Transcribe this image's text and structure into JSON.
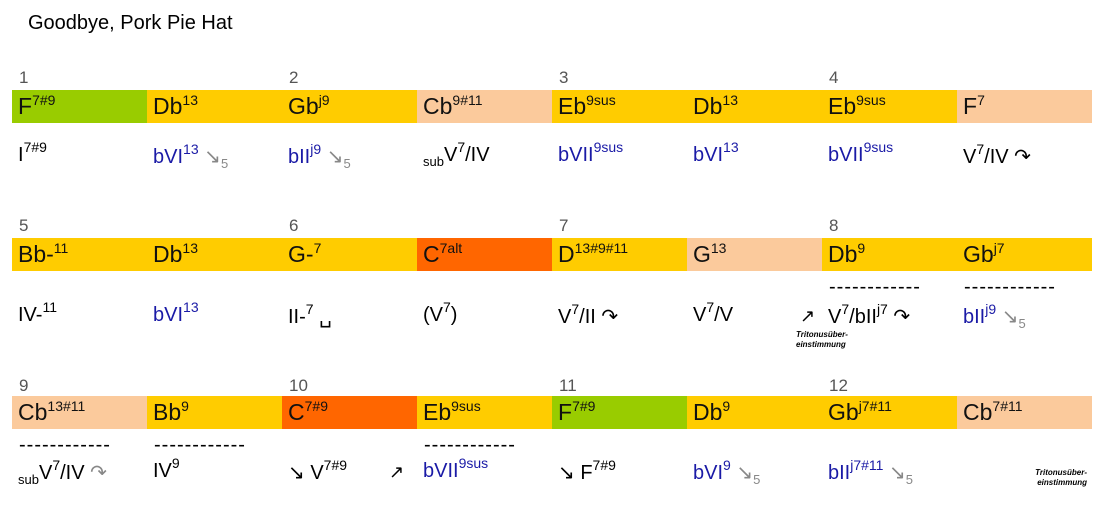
{
  "title": "Goodbye, Pork Pie Hat",
  "rows": [
    {
      "cells": [
        {
          "bar": "1",
          "color": "#99cc00",
          "chord": {
            "root": "F",
            "sup": "7#9"
          },
          "analysis": {
            "color": "#000000",
            "parts": [
              {
                "text": "I"
              },
              {
                "sup": "7#9"
              }
            ]
          }
        },
        {
          "color": "#ffcc00",
          "chord": {
            "root": "Db",
            "sup": "13"
          },
          "analysis": {
            "color": "#1a1aa6",
            "parts": [
              {
                "text": "bVI"
              },
              {
                "sup": "13"
              },
              {
                "mark": " ↘"
              },
              {
                "marksub": "5"
              }
            ]
          }
        },
        {
          "bar": "2",
          "color": "#ffcc00",
          "chord": {
            "root": "Gb",
            "sup": "j9"
          },
          "analysis": {
            "color": "#1a1aa6",
            "parts": [
              {
                "text": "bII"
              },
              {
                "sup": "j9"
              },
              {
                "mark": " ↘"
              },
              {
                "marksub": "5"
              }
            ]
          }
        },
        {
          "color": "#fbca9c",
          "chord": {
            "root": "Cb",
            "sup": "9#11"
          },
          "analysis": {
            "color": "#000000",
            "parts": [
              {
                "sub": "sub"
              },
              {
                "text": "V"
              },
              {
                "sup": "7"
              },
              {
                "text": "/IV"
              }
            ]
          }
        },
        {
          "bar": "3",
          "color": "#ffcc00",
          "chord": {
            "root": "Eb",
            "sup": "9sus"
          },
          "analysis": {
            "color": "#1a1aa6",
            "parts": [
              {
                "text": "bVII"
              },
              {
                "sup": "9sus"
              }
            ]
          }
        },
        {
          "color": "#ffcc00",
          "chord": {
            "root": "Db",
            "sup": "13"
          },
          "analysis": {
            "color": "#1a1aa6",
            "parts": [
              {
                "text": "bVI"
              },
              {
                "sup": "13"
              }
            ]
          }
        },
        {
          "bar": "4",
          "color": "#ffcc00",
          "chord": {
            "root": "Eb",
            "sup": "9sus"
          },
          "analysis": {
            "color": "#1a1aa6",
            "parts": [
              {
                "text": "bVII"
              },
              {
                "sup": "9sus"
              }
            ]
          }
        },
        {
          "color": "#fbca9c",
          "chord": {
            "root": "F",
            "sup": "7"
          },
          "analysis": {
            "color": "#000000",
            "parts": [
              {
                "text": "V"
              },
              {
                "sup": "7"
              },
              {
                "text": "/IV ↷"
              }
            ]
          }
        }
      ]
    },
    {
      "cells": [
        {
          "bar": "5",
          "color": "#ffcc00",
          "chord": {
            "root": "Bb-",
            "sup": "11"
          },
          "analysis": {
            "color": "#000000",
            "parts": [
              {
                "text": "IV-"
              },
              {
                "sup": "11"
              }
            ]
          }
        },
        {
          "color": "#ffcc00",
          "chord": {
            "root": "Db",
            "sup": "13"
          },
          "analysis": {
            "color": "#1a1aa6",
            "parts": [
              {
                "text": "bVI"
              },
              {
                "sup": "13"
              }
            ]
          }
        },
        {
          "bar": "6",
          "color": "#ffcc00",
          "chord": {
            "root": "G-",
            "sup": "7"
          },
          "analysis": {
            "color": "#000000",
            "parts": [
              {
                "text": "II-"
              },
              {
                "sup": "7"
              },
              {
                "text": " ␣"
              }
            ]
          }
        },
        {
          "color": "#ff6600",
          "chord": {
            "root": "C",
            "sup": "7alt"
          },
          "analysis": {
            "color": "#000000",
            "parts": [
              {
                "text": "(V"
              },
              {
                "sup": "7"
              },
              {
                "text": ")"
              }
            ]
          }
        },
        {
          "bar": "7",
          "color": "#ffcc00",
          "chord": {
            "root": "D",
            "sup": "13#9#11"
          },
          "analysis": {
            "color": "#000000",
            "parts": [
              {
                "text": "V"
              },
              {
                "sup": "7"
              },
              {
                "text": "/II ↷"
              }
            ]
          }
        },
        {
          "color": "#fbca9c",
          "chord": {
            "root": "G",
            "sup": "13"
          },
          "analysis": {
            "color": "#000000",
            "parts": [
              {
                "text": "V"
              },
              {
                "sup": "7"
              },
              {
                "text": "/V"
              }
            ]
          },
          "note": {
            "arrow": "↗",
            "lines": [
              "Tritonusüber-",
              "einstimmung"
            ]
          }
        },
        {
          "bar": "8",
          "color": "#ffcc00",
          "chord": {
            "root": "Db",
            "sup": "9"
          },
          "line": "------------",
          "analysis": {
            "color": "#000000",
            "parts": [
              {
                "text": "V"
              },
              {
                "sup": "7"
              },
              {
                "text": "/bII"
              },
              {
                "sup": "j7"
              },
              {
                "text": " ↷"
              }
            ]
          }
        },
        {
          "color": "#ffcc00",
          "chord": {
            "root": "Gb",
            "sup": "j7"
          },
          "line": "------------",
          "analysis": {
            "color": "#1a1aa6",
            "parts": [
              {
                "text": "bII"
              },
              {
                "sup": "j9"
              },
              {
                "mark": " ↘"
              },
              {
                "marksub": "5"
              }
            ]
          }
        }
      ]
    },
    {
      "cells": [
        {
          "bar": "9",
          "color": "#fbca9c",
          "chord": {
            "root": "Cb",
            "sup": "13#11"
          },
          "line": "------------",
          "analysis": {
            "color": "#000000",
            "parts": [
              {
                "sub": "sub"
              },
              {
                "text": "V"
              },
              {
                "sup": "7"
              },
              {
                "text": "/IV"
              },
              {
                "mark": " ↷"
              }
            ]
          }
        },
        {
          "color": "#ffcc00",
          "chord": {
            "root": "Bb",
            "sup": "9"
          },
          "line": "------------",
          "analysis": {
            "color": "#000000",
            "parts": [
              {
                "text": "IV"
              },
              {
                "sup": "9"
              }
            ]
          }
        },
        {
          "bar": "10",
          "color": "#ff6600",
          "chord": {
            "root": "C",
            "sup": "7#9"
          },
          "analysis": {
            "color": "#000000",
            "parts": [
              {
                "text": "↘ V"
              },
              {
                "sup": "7#9"
              }
            ],
            "end": "↗"
          }
        },
        {
          "color": "#ffcc00",
          "chord": {
            "root": "Eb",
            "sup": "9sus"
          },
          "line": "------------",
          "analysis": {
            "color": "#1a1aa6",
            "parts": [
              {
                "text": "bVII"
              },
              {
                "sup": "9sus"
              }
            ]
          }
        },
        {
          "bar": "11",
          "color": "#99cc00",
          "chord": {
            "root": "F",
            "sup": "7#9"
          },
          "analysis": {
            "color": "#000000",
            "parts": [
              {
                "text": "↘ F"
              },
              {
                "sup": "7#9"
              }
            ]
          }
        },
        {
          "color": "#ffcc00",
          "chord": {
            "root": "Db",
            "sup": "9"
          },
          "analysis": {
            "color": "#1a1aa6",
            "parts": [
              {
                "text": "bVI"
              },
              {
                "sup": "9"
              },
              {
                "mark": " ↘"
              },
              {
                "marksub": "5"
              }
            ]
          }
        },
        {
          "bar": "12",
          "color": "#ffcc00",
          "chord": {
            "root": "Gb",
            "sup": "j7#11"
          },
          "analysis": {
            "color": "#1a1aa6",
            "parts": [
              {
                "text": "bII"
              },
              {
                "sup": "j7#11"
              },
              {
                "mark": " ↘"
              },
              {
                "marksub": "5"
              }
            ]
          }
        },
        {
          "color": "#fbca9c",
          "chord": {
            "root": "Cb",
            "sup": "7#11"
          },
          "tailnote": {
            "lines": [
              "Tritonusüber-",
              "einstimmung"
            ]
          }
        }
      ]
    }
  ]
}
